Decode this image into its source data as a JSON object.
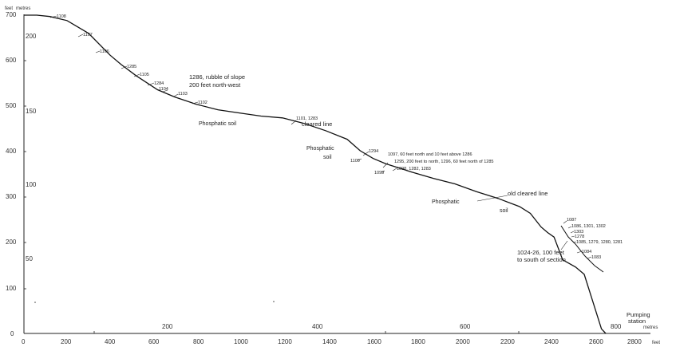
{
  "axes": {
    "y_feet_unit": "feet",
    "y_metres_unit": "metres",
    "x_feet_unit": "feet",
    "x_metres_unit": "metres",
    "y_feet_ticks": [
      "700",
      "600",
      "500",
      "400",
      "300",
      "200",
      "100",
      "0"
    ],
    "y_metres_ticks": [
      "200",
      "150",
      "100",
      "50"
    ],
    "x_feet_ticks": [
      "0",
      "200",
      "400",
      "600",
      "800",
      "1000",
      "1200",
      "1400",
      "1600",
      "1800",
      "2000",
      "2200",
      "2400",
      "2600",
      "2800"
    ],
    "x_metres_ticks": [
      "200",
      "400",
      "600",
      "800"
    ]
  },
  "annotations": {
    "s1108": "1108",
    "s1107": "1107",
    "s1106": "1106",
    "s1285": "1285",
    "s1105": "1105",
    "s1284": "1284",
    "s1104": "1104",
    "s1103": "1103",
    "s1102": "1102",
    "rubble_line1": "1286, rubble of slope",
    "rubble_line2": "200 feet north-west",
    "s1101_1283": "1101, 1283",
    "cleared_line": "cleared line",
    "s1294": "1294",
    "s1100": "1100",
    "s1099": "1099",
    "s1097_note": "1097, 60 feet north and 10 feet above 1286",
    "s1295_note": "1295, 200 feet to north, 1296, 60 feet north of 1285",
    "s1098_group": "1098, 1282, 1283",
    "old_cleared_line": "old cleared line",
    "s1087": "1087",
    "s1086_group": "1086, 1301, 1302",
    "s1303": "1303",
    "s1278": "1278",
    "s1085_group": "1085, 1279, 1280, 1281",
    "s1084": "1084",
    "s1083": "1083",
    "s1024_line1": "1024-26, 100 feet",
    "s1024_line2": "to south of section",
    "pumping_line1": "Pumping",
    "pumping_line2": "station"
  },
  "soil_labels": {
    "phosphatic_soil_1": "Phosphatic soil",
    "phosphatic_2a": "Phosphatic",
    "soil_2b": "soil",
    "phosphatic_3a": "Phosphatic",
    "soil_3b": "soil"
  },
  "profile": {
    "x_feet": [
      0,
      60,
      120,
      200,
      300,
      400,
      450,
      520,
      620,
      700,
      800,
      900,
      1000,
      1100,
      1200,
      1300,
      1400,
      1500,
      1560,
      1620,
      1680,
      1800,
      1900,
      2000,
      2100,
      2200,
      2300,
      2350,
      2400,
      2430,
      2460,
      2500,
      2560,
      2600,
      2640,
      2680,
      2700
    ],
    "y_feet": [
      700,
      700,
      697,
      688,
      660,
      612,
      592,
      567,
      536,
      520,
      504,
      492,
      485,
      478,
      474,
      462,
      446,
      427,
      402,
      385,
      373,
      355,
      341,
      329,
      312,
      297,
      279,
      264,
      234,
      222,
      212,
      162,
      146,
      130,
      70,
      10,
      0
    ]
  }
}
